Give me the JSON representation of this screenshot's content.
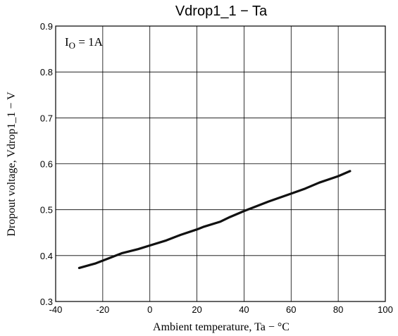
{
  "chart_data": {
    "type": "line",
    "title": "Vdrop1_1 − Ta",
    "xlabel": "Ambient temperature, Ta − °C",
    "ylabel": "Dropout voltage, Vdrop1_1 − V",
    "annotation": {
      "symbol": "I",
      "subscript": "O",
      "value": " = 1A"
    },
    "xlim": [
      -40,
      100
    ],
    "ylim": [
      0.3,
      0.9
    ],
    "grid": true,
    "x_ticks": [
      -40,
      -20,
      0,
      20,
      40,
      60,
      80,
      100
    ],
    "x_tick_labels": [
      "-40",
      "-20",
      "0",
      "20",
      "40",
      "60",
      "80",
      "100"
    ],
    "y_ticks": [
      0.3,
      0.4,
      0.5,
      0.6,
      0.7,
      0.8,
      0.9
    ],
    "y_tick_labels": [
      "0.3",
      "0.4",
      "0.5",
      "0.6",
      "0.7",
      "0.8",
      "0.9"
    ],
    "series": [
      {
        "color": "#111111",
        "x": [
          -30,
          -23,
          -17,
          -12,
          -5,
          0,
          7,
          13,
          20,
          23,
          30,
          34,
          40,
          50,
          60,
          66,
          72,
          80,
          85
        ],
        "y": [
          0.373,
          0.383,
          0.395,
          0.405,
          0.414,
          0.422,
          0.433,
          0.445,
          0.457,
          0.463,
          0.474,
          0.484,
          0.497,
          0.517,
          0.535,
          0.546,
          0.559,
          0.573,
          0.584
        ]
      }
    ]
  }
}
